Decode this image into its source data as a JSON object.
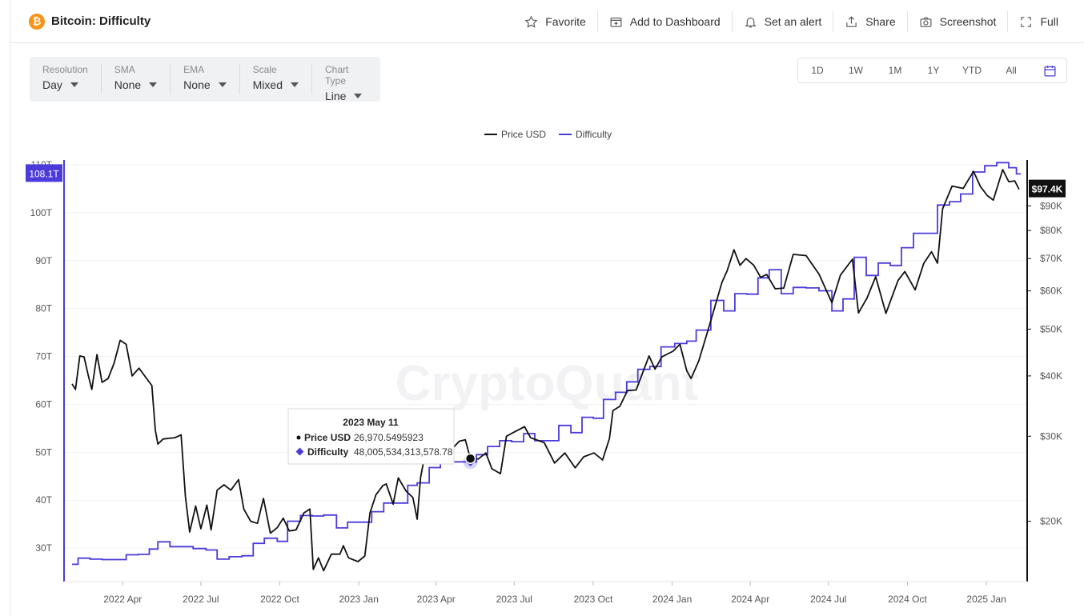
{
  "header": {
    "coin_symbol": "₿",
    "title": "Bitcoin: Difficulty",
    "actions": [
      {
        "label": "Favorite",
        "icon": "star-icon"
      },
      {
        "label": "Add to Dashboard",
        "icon": "dashboard-add-icon"
      },
      {
        "label": "Set an alert",
        "icon": "bell-icon"
      },
      {
        "label": "Share",
        "icon": "share-icon"
      },
      {
        "label": "Screenshot",
        "icon": "camera-icon"
      },
      {
        "label": "Full",
        "icon": "fullscreen-icon"
      }
    ]
  },
  "controls": [
    {
      "label": "Resolution",
      "value": "Day"
    },
    {
      "label": "SMA",
      "value": "None"
    },
    {
      "label": "EMA",
      "value": "None"
    },
    {
      "label": "Scale",
      "value": "Mixed"
    },
    {
      "label": "Chart Type",
      "value": "Line"
    }
  ],
  "ranges": [
    "1D",
    "1W",
    "1M",
    "1Y",
    "YTD",
    "All"
  ],
  "watermark": "CryptoQuant",
  "colors": {
    "price": "#111111",
    "difficulty": "#4b3bdb",
    "coin": "#f7931a"
  },
  "chart_data": {
    "type": "line",
    "legend": [
      "Price USD",
      "Difficulty"
    ],
    "legend_position": "top-center",
    "x_ticks": [
      "2022 Apr",
      "2022 Jul",
      "2022 Oct",
      "2023 Jan",
      "2023 Apr",
      "2023 Jul",
      "2023 Oct",
      "2024 Jan",
      "2024 Apr",
      "2024 Jul",
      "2024 Oct",
      "2025 Jan"
    ],
    "x_range": [
      "2022-02-01",
      "2025-02-10"
    ],
    "left_axis": {
      "ticks": [
        "110T",
        "100T",
        "90T",
        "80T",
        "70T",
        "60T",
        "50T",
        "40T",
        "30T"
      ],
      "range": [
        23,
        111
      ],
      "current_label": "108.1T"
    },
    "right_axis": {
      "scale": "log",
      "ticks": [
        "$90K",
        "$80K",
        "$70K",
        "$60K",
        "$50K",
        "$40K",
        "$30K",
        "$20K"
      ],
      "range": [
        15000,
        112000
      ],
      "current_label": "$97.4K"
    },
    "series": [
      {
        "name": "Price USD",
        "axis": "right",
        "points": [
          [
            "2022-02-01",
            38500
          ],
          [
            "2022-02-05",
            37500
          ],
          [
            "2022-02-10",
            44000
          ],
          [
            "2022-02-15",
            43800
          ],
          [
            "2022-02-20",
            40000
          ],
          [
            "2022-02-24",
            37500
          ],
          [
            "2022-03-02",
            44300
          ],
          [
            "2022-03-08",
            38800
          ],
          [
            "2022-03-15",
            39500
          ],
          [
            "2022-03-22",
            42500
          ],
          [
            "2022-03-29",
            47400
          ],
          [
            "2022-04-05",
            46500
          ],
          [
            "2022-04-12",
            40000
          ],
          [
            "2022-04-20",
            41500
          ],
          [
            "2022-04-28",
            39700
          ],
          [
            "2022-05-05",
            38200
          ],
          [
            "2022-05-09",
            30900
          ],
          [
            "2022-05-12",
            28900
          ],
          [
            "2022-05-18",
            29600
          ],
          [
            "2022-05-25",
            29700
          ],
          [
            "2022-06-01",
            29800
          ],
          [
            "2022-06-08",
            30200
          ],
          [
            "2022-06-13",
            22500
          ],
          [
            "2022-06-18",
            19000
          ],
          [
            "2022-06-25",
            21500
          ],
          [
            "2022-07-01",
            19300
          ],
          [
            "2022-07-08",
            21600
          ],
          [
            "2022-07-13",
            19200
          ],
          [
            "2022-07-20",
            23200
          ],
          [
            "2022-07-28",
            23800
          ],
          [
            "2022-08-05",
            23200
          ],
          [
            "2022-08-14",
            24400
          ],
          [
            "2022-08-20",
            21200
          ],
          [
            "2022-08-28",
            20000
          ],
          [
            "2022-09-05",
            19800
          ],
          [
            "2022-09-12",
            22300
          ],
          [
            "2022-09-20",
            18900
          ],
          [
            "2022-09-28",
            19400
          ],
          [
            "2022-10-05",
            20300
          ],
          [
            "2022-10-12",
            19100
          ],
          [
            "2022-10-20",
            19200
          ],
          [
            "2022-10-29",
            20800
          ],
          [
            "2022-11-05",
            21200
          ],
          [
            "2022-11-09",
            15900
          ],
          [
            "2022-11-15",
            16800
          ],
          [
            "2022-11-21",
            15800
          ],
          [
            "2022-11-30",
            17100
          ],
          [
            "2022-12-10",
            17100
          ],
          [
            "2022-12-14",
            17800
          ],
          [
            "2022-12-20",
            16800
          ],
          [
            "2022-12-31",
            16500
          ],
          [
            "2023-01-08",
            16950
          ],
          [
            "2023-01-14",
            20800
          ],
          [
            "2023-01-21",
            22700
          ],
          [
            "2023-01-29",
            23700
          ],
          [
            "2023-02-02",
            23900
          ],
          [
            "2023-02-10",
            21700
          ],
          [
            "2023-02-16",
            24600
          ],
          [
            "2023-02-25",
            23100
          ],
          [
            "2023-03-05",
            22400
          ],
          [
            "2023-03-10",
            20200
          ],
          [
            "2023-03-14",
            24700
          ],
          [
            "2023-03-18",
            26900
          ],
          [
            "2023-03-22",
            28300
          ],
          [
            "2023-03-30",
            28400
          ],
          [
            "2023-04-10",
            28300
          ],
          [
            "2023-04-14",
            30400
          ],
          [
            "2023-04-20",
            28300
          ],
          [
            "2023-04-28",
            29300
          ],
          [
            "2023-05-05",
            29500
          ],
          [
            "2023-05-11",
            26970
          ],
          [
            "2023-05-20",
            26900
          ],
          [
            "2023-05-29",
            27700
          ],
          [
            "2023-06-05",
            25700
          ],
          [
            "2023-06-15",
            25100
          ],
          [
            "2023-06-22",
            30000
          ],
          [
            "2023-07-01",
            30600
          ],
          [
            "2023-07-13",
            31400
          ],
          [
            "2023-07-20",
            29800
          ],
          [
            "2023-08-05",
            29100
          ],
          [
            "2023-08-17",
            26400
          ],
          [
            "2023-08-29",
            27700
          ],
          [
            "2023-09-10",
            25800
          ],
          [
            "2023-09-20",
            27200
          ],
          [
            "2023-10-02",
            27700
          ],
          [
            "2023-10-12",
            26800
          ],
          [
            "2023-10-20",
            29700
          ],
          [
            "2023-10-24",
            33900
          ],
          [
            "2023-11-01",
            34600
          ],
          [
            "2023-11-10",
            37300
          ],
          [
            "2023-11-20",
            37400
          ],
          [
            "2023-12-05",
            44000
          ],
          [
            "2023-12-12",
            41300
          ],
          [
            "2023-12-20",
            43800
          ],
          [
            "2024-01-02",
            45000
          ],
          [
            "2024-01-10",
            46500
          ],
          [
            "2024-01-18",
            41000
          ],
          [
            "2024-01-23",
            39500
          ],
          [
            "2024-02-01",
            43000
          ],
          [
            "2024-02-12",
            49900
          ],
          [
            "2024-02-28",
            62500
          ],
          [
            "2024-03-05",
            66000
          ],
          [
            "2024-03-13",
            73000
          ],
          [
            "2024-03-20",
            67800
          ],
          [
            "2024-03-27",
            70000
          ],
          [
            "2024-04-05",
            67800
          ],
          [
            "2024-04-13",
            64000
          ],
          [
            "2024-04-20",
            64900
          ],
          [
            "2024-04-30",
            60600
          ],
          [
            "2024-05-10",
            60800
          ],
          [
            "2024-05-21",
            71400
          ],
          [
            "2024-06-05",
            71000
          ],
          [
            "2024-06-20",
            65000
          ],
          [
            "2024-07-05",
            56700
          ],
          [
            "2024-07-15",
            64700
          ],
          [
            "2024-07-29",
            69800
          ],
          [
            "2024-08-05",
            54000
          ],
          [
            "2024-08-15",
            58000
          ],
          [
            "2024-08-25",
            64200
          ],
          [
            "2024-09-06",
            53900
          ],
          [
            "2024-09-20",
            63000
          ],
          [
            "2024-09-28",
            65800
          ],
          [
            "2024-10-10",
            60300
          ],
          [
            "2024-10-20",
            68400
          ],
          [
            "2024-10-29",
            72300
          ],
          [
            "2024-11-05",
            68500
          ],
          [
            "2024-11-11",
            88700
          ],
          [
            "2024-11-22",
            98900
          ],
          [
            "2024-12-05",
            97800
          ],
          [
            "2024-12-17",
            106100
          ],
          [
            "2024-12-25",
            98700
          ],
          [
            "2025-01-02",
            94500
          ],
          [
            "2025-01-09",
            92500
          ],
          [
            "2025-01-20",
            107000
          ],
          [
            "2025-01-27",
            101000
          ],
          [
            "2025-02-03",
            101400
          ],
          [
            "2025-02-08",
            97400
          ]
        ]
      },
      {
        "name": "Difficulty",
        "axis": "left",
        "step": true,
        "points": [
          [
            "2022-02-01",
            26.6
          ],
          [
            "2022-02-08",
            27.9
          ],
          [
            "2022-02-22",
            27.7
          ],
          [
            "2022-03-08",
            27.6
          ],
          [
            "2022-04-05",
            28.6
          ],
          [
            "2022-04-19",
            28.7
          ],
          [
            "2022-05-02",
            29.8
          ],
          [
            "2022-05-12",
            31.3
          ],
          [
            "2022-05-26",
            30.3
          ],
          [
            "2022-06-08",
            30.3
          ],
          [
            "2022-06-22",
            29.9
          ],
          [
            "2022-07-07",
            29.6
          ],
          [
            "2022-07-20",
            27.7
          ],
          [
            "2022-08-03",
            28.2
          ],
          [
            "2022-08-18",
            28.4
          ],
          [
            "2022-08-31",
            30.98
          ],
          [
            "2022-09-13",
            32.05
          ],
          [
            "2022-09-28",
            31.4
          ],
          [
            "2022-10-10",
            35.6
          ],
          [
            "2022-10-25",
            36.8
          ],
          [
            "2022-11-08",
            36.7
          ],
          [
            "2022-11-21",
            36.9
          ],
          [
            "2022-12-06",
            34.2
          ],
          [
            "2022-12-19",
            35.4
          ],
          [
            "2023-01-02",
            35.4
          ],
          [
            "2023-01-16",
            37.6
          ],
          [
            "2023-01-30",
            39.4
          ],
          [
            "2023-02-13",
            39.4
          ],
          [
            "2023-02-27",
            43.1
          ],
          [
            "2023-03-10",
            43.6
          ],
          [
            "2023-03-24",
            46.8
          ],
          [
            "2023-04-06",
            47.9
          ],
          [
            "2023-04-20",
            48.0
          ],
          [
            "2023-05-04",
            48.0
          ],
          [
            "2023-05-18",
            49.5
          ],
          [
            "2023-05-31",
            51.2
          ],
          [
            "2023-06-14",
            52.4
          ],
          [
            "2023-06-28",
            52.2
          ],
          [
            "2023-07-12",
            53.9
          ],
          [
            "2023-07-25",
            52.4
          ],
          [
            "2023-08-08",
            52.4
          ],
          [
            "2023-08-22",
            55.6
          ],
          [
            "2023-09-05",
            54.1
          ],
          [
            "2023-09-18",
            57.3
          ],
          [
            "2023-10-01",
            57.1
          ],
          [
            "2023-10-13",
            61.0
          ],
          [
            "2023-10-27",
            62.5
          ],
          [
            "2023-11-09",
            64.7
          ],
          [
            "2023-11-22",
            67.3
          ],
          [
            "2023-12-06",
            67.9
          ],
          [
            "2023-12-19",
            72.0
          ],
          [
            "2024-01-04",
            72.7
          ],
          [
            "2024-01-18",
            73.2
          ],
          [
            "2024-01-29",
            75.5
          ],
          [
            "2024-02-15",
            81.7
          ],
          [
            "2024-03-01",
            79.5
          ],
          [
            "2024-03-14",
            83.1
          ],
          [
            "2024-03-28",
            83.0
          ],
          [
            "2024-04-10",
            86.4
          ],
          [
            "2024-04-23",
            88.1
          ],
          [
            "2024-05-07",
            83.1
          ],
          [
            "2024-05-21",
            84.4
          ],
          [
            "2024-06-05",
            84.3
          ],
          [
            "2024-06-20",
            83.7
          ],
          [
            "2024-07-05",
            79.5
          ],
          [
            "2024-07-18",
            82.0
          ],
          [
            "2024-07-31",
            90.7
          ],
          [
            "2024-08-14",
            86.9
          ],
          [
            "2024-08-28",
            89.5
          ],
          [
            "2024-09-11",
            89.0
          ],
          [
            "2024-09-24",
            92.7
          ],
          [
            "2024-10-08",
            95.7
          ],
          [
            "2024-10-23",
            95.7
          ],
          [
            "2024-11-05",
            101.6
          ],
          [
            "2024-11-19",
            102.3
          ],
          [
            "2024-12-02",
            103.9
          ],
          [
            "2024-12-16",
            108.5
          ],
          [
            "2024-12-30",
            109.8
          ],
          [
            "2025-01-13",
            110.45
          ],
          [
            "2025-01-27",
            109.4
          ],
          [
            "2025-02-05",
            108.1
          ]
        ]
      }
    ],
    "tooltip": {
      "date": "2023 May 11",
      "price_label": "Price USD",
      "price_value": "26,970.5495923",
      "difficulty_label": "Difficulty",
      "difficulty_value": "48,005,534,313,578.78"
    }
  }
}
